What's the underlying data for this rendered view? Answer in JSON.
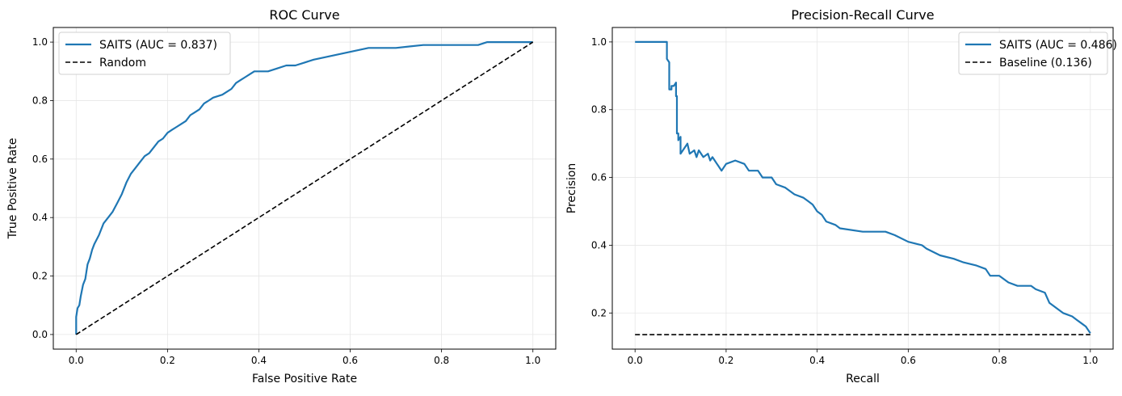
{
  "chart_data": [
    {
      "type": "line",
      "title": "ROC Curve",
      "xlabel": "False Positive Rate",
      "ylabel": "True Positive Rate",
      "xlim": [
        -0.05,
        1.05
      ],
      "ylim": [
        -0.05,
        1.05
      ],
      "xticks": [
        "0.0",
        "0.2",
        "0.4",
        "0.6",
        "0.8",
        "1.0"
      ],
      "yticks": [
        "0.0",
        "0.2",
        "0.4",
        "0.6",
        "0.8",
        "1.0"
      ],
      "grid": true,
      "legend_position": "top-left",
      "series": [
        {
          "name": "SAITS (AUC = 0.837)",
          "color": "#1f77b4",
          "style": "solid",
          "points": [
            [
              0.0,
              0.0
            ],
            [
              0.0,
              0.06
            ],
            [
              0.003,
              0.09
            ],
            [
              0.007,
              0.1
            ],
            [
              0.01,
              0.13
            ],
            [
              0.015,
              0.17
            ],
            [
              0.02,
              0.19
            ],
            [
              0.025,
              0.24
            ],
            [
              0.03,
              0.26
            ],
            [
              0.035,
              0.29
            ],
            [
              0.04,
              0.31
            ],
            [
              0.05,
              0.34
            ],
            [
              0.06,
              0.38
            ],
            [
              0.07,
              0.4
            ],
            [
              0.08,
              0.42
            ],
            [
              0.09,
              0.45
            ],
            [
              0.1,
              0.48
            ],
            [
              0.11,
              0.52
            ],
            [
              0.12,
              0.55
            ],
            [
              0.13,
              0.57
            ],
            [
              0.14,
              0.59
            ],
            [
              0.15,
              0.61
            ],
            [
              0.16,
              0.62
            ],
            [
              0.17,
              0.64
            ],
            [
              0.18,
              0.66
            ],
            [
              0.19,
              0.67
            ],
            [
              0.2,
              0.69
            ],
            [
              0.21,
              0.7
            ],
            [
              0.22,
              0.71
            ],
            [
              0.23,
              0.72
            ],
            [
              0.24,
              0.73
            ],
            [
              0.25,
              0.75
            ],
            [
              0.26,
              0.76
            ],
            [
              0.27,
              0.77
            ],
            [
              0.28,
              0.79
            ],
            [
              0.29,
              0.8
            ],
            [
              0.3,
              0.81
            ],
            [
              0.32,
              0.82
            ],
            [
              0.33,
              0.83
            ],
            [
              0.34,
              0.84
            ],
            [
              0.35,
              0.86
            ],
            [
              0.36,
              0.87
            ],
            [
              0.37,
              0.88
            ],
            [
              0.38,
              0.89
            ],
            [
              0.39,
              0.9
            ],
            [
              0.4,
              0.9
            ],
            [
              0.42,
              0.9
            ],
            [
              0.44,
              0.91
            ],
            [
              0.46,
              0.92
            ],
            [
              0.48,
              0.92
            ],
            [
              0.5,
              0.93
            ],
            [
              0.52,
              0.94
            ],
            [
              0.55,
              0.95
            ],
            [
              0.58,
              0.96
            ],
            [
              0.61,
              0.97
            ],
            [
              0.64,
              0.98
            ],
            [
              0.7,
              0.98
            ],
            [
              0.76,
              0.99
            ],
            [
              0.82,
              0.99
            ],
            [
              0.88,
              0.99
            ],
            [
              0.9,
              1.0
            ],
            [
              1.0,
              1.0
            ]
          ]
        },
        {
          "name": "Random",
          "color": "#000000",
          "style": "dashed",
          "points": [
            [
              0.0,
              0.0
            ],
            [
              1.0,
              1.0
            ]
          ]
        }
      ]
    },
    {
      "type": "line",
      "title": "Precision-Recall Curve",
      "xlabel": "Recall",
      "ylabel": "Precision",
      "xlim": [
        -0.05,
        1.05
      ],
      "ylim": [
        0.0933,
        1.0427
      ],
      "xticks": [
        "0.0",
        "0.2",
        "0.4",
        "0.6",
        "0.8",
        "1.0"
      ],
      "yticks": [
        "0.2",
        "0.4",
        "0.6",
        "0.8",
        "1.0"
      ],
      "grid": true,
      "legend_position": "top-right",
      "series": [
        {
          "name": "SAITS (AUC = 0.486)",
          "color": "#1f77b4",
          "style": "solid",
          "points": [
            [
              0.0,
              1.0
            ],
            [
              0.07,
              1.0
            ],
            [
              0.07,
              0.95
            ],
            [
              0.075,
              0.94
            ],
            [
              0.075,
              0.86
            ],
            [
              0.08,
              0.86
            ],
            [
              0.08,
              0.87
            ],
            [
              0.085,
              0.87
            ],
            [
              0.09,
              0.88
            ],
            [
              0.09,
              0.84
            ],
            [
              0.092,
              0.84
            ],
            [
              0.092,
              0.73
            ],
            [
              0.095,
              0.73
            ],
            [
              0.095,
              0.71
            ],
            [
              0.1,
              0.72
            ],
            [
              0.1,
              0.67
            ],
            [
              0.11,
              0.69
            ],
            [
              0.115,
              0.7
            ],
            [
              0.12,
              0.67
            ],
            [
              0.13,
              0.68
            ],
            [
              0.135,
              0.66
            ],
            [
              0.14,
              0.68
            ],
            [
              0.15,
              0.66
            ],
            [
              0.16,
              0.67
            ],
            [
              0.165,
              0.65
            ],
            [
              0.17,
              0.66
            ],
            [
              0.18,
              0.64
            ],
            [
              0.19,
              0.62
            ],
            [
              0.2,
              0.64
            ],
            [
              0.22,
              0.65
            ],
            [
              0.24,
              0.64
            ],
            [
              0.25,
              0.62
            ],
            [
              0.27,
              0.62
            ],
            [
              0.28,
              0.6
            ],
            [
              0.3,
              0.6
            ],
            [
              0.31,
              0.58
            ],
            [
              0.33,
              0.57
            ],
            [
              0.35,
              0.55
            ],
            [
              0.37,
              0.54
            ],
            [
              0.38,
              0.53
            ],
            [
              0.39,
              0.52
            ],
            [
              0.4,
              0.5
            ],
            [
              0.41,
              0.49
            ],
            [
              0.42,
              0.47
            ],
            [
              0.44,
              0.46
            ],
            [
              0.45,
              0.45
            ],
            [
              0.5,
              0.44
            ],
            [
              0.52,
              0.44
            ],
            [
              0.55,
              0.44
            ],
            [
              0.57,
              0.43
            ],
            [
              0.6,
              0.41
            ],
            [
              0.63,
              0.4
            ],
            [
              0.64,
              0.39
            ],
            [
              0.67,
              0.37
            ],
            [
              0.7,
              0.36
            ],
            [
              0.72,
              0.35
            ],
            [
              0.75,
              0.34
            ],
            [
              0.77,
              0.33
            ],
            [
              0.78,
              0.31
            ],
            [
              0.8,
              0.31
            ],
            [
              0.82,
              0.29
            ],
            [
              0.84,
              0.28
            ],
            [
              0.87,
              0.28
            ],
            [
              0.88,
              0.27
            ],
            [
              0.9,
              0.26
            ],
            [
              0.91,
              0.23
            ],
            [
              0.92,
              0.22
            ],
            [
              0.94,
              0.2
            ],
            [
              0.96,
              0.19
            ],
            [
              0.97,
              0.18
            ],
            [
              0.98,
              0.17
            ],
            [
              0.99,
              0.16
            ],
            [
              0.995,
              0.15
            ],
            [
              1.0,
              0.14
            ]
          ]
        },
        {
          "name": "Baseline (0.136)",
          "color": "#000000",
          "style": "dashed",
          "points": [
            [
              0.0,
              0.136
            ],
            [
              1.0,
              0.136
            ]
          ]
        }
      ]
    }
  ]
}
